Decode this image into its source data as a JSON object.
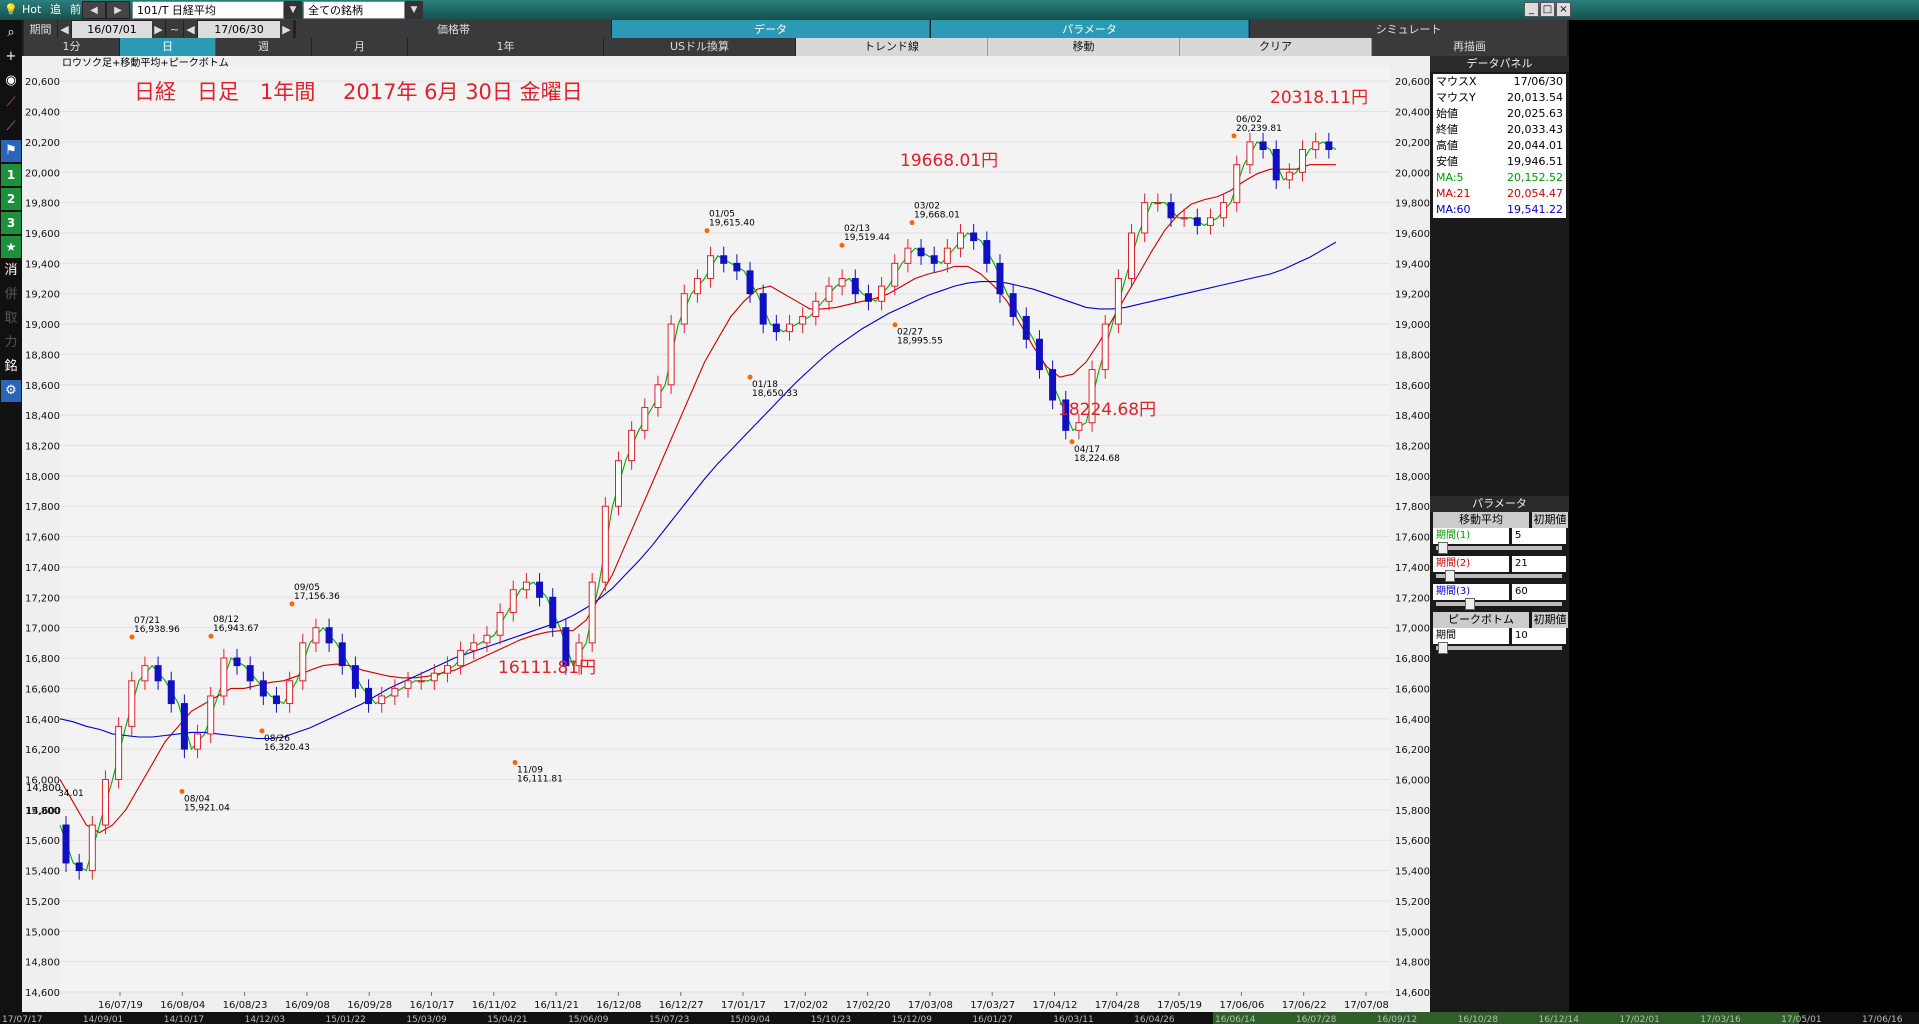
{
  "titlebar": {
    "hot": "Hot",
    "follow": "追",
    "prev": "前",
    "nav_left": "◀",
    "nav_right": "▶",
    "symbol": "101/T 日経平均",
    "filter": "全ての銘柄",
    "win_min": "_",
    "win_max": "□",
    "win_close": "×"
  },
  "toolbar": {
    "period_label": "期間",
    "date_from": "16/07/01",
    "tilde": "~",
    "date_to": "17/06/30",
    "price_band": "価格帯",
    "data_tab": "データ",
    "parameter_tab": "パラメータ",
    "simulate_tab": "シミュレート",
    "intervals": [
      "1分",
      "日",
      "週",
      "月"
    ],
    "one_year": "1年",
    "usd": "USドル換算",
    "trendline": "トレンド線",
    "move": "移動",
    "clear": "クリア",
    "redraw": "再描画"
  },
  "left_tools": {
    "search": "⌕",
    "plus": "+",
    "camera": "◉",
    "chart1": "⟋",
    "chart2": "⟋",
    "flag": "⚑",
    "n1": "1",
    "n2": "2",
    "n3": "3",
    "star": "★",
    "clear": "消",
    "t1": "併",
    "t2": "取",
    "t3": "力",
    "t4": "銘",
    "gear": "⚙"
  },
  "chart_data": {
    "type": "line",
    "legend_text": "ロウソク足+移動平均+ピークボトム",
    "annotation_title": "日経　日足　1年間　 2017年 6月 30日 金曜日",
    "ylim": [
      14600,
      20700
    ],
    "y_ticks": [
      "20,600",
      "20,400",
      "20,200",
      "20,000",
      "19,800",
      "19,600",
      "19,400",
      "19,200",
      "19,000",
      "18,800",
      "18,600",
      "18,400",
      "18,200",
      "18,000",
      "17,800",
      "17,600",
      "17,400",
      "17,200",
      "17,000",
      "16,800",
      "16,600",
      "16,400",
      "16,200",
      "16,000",
      "15,800",
      "15,600",
      "15,400",
      "15,200",
      "15,000",
      "14,800",
      "14,600"
    ],
    "x_ticks": [
      "16/07/19",
      "16/08/04",
      "16/08/23",
      "16/09/08",
      "16/09/28",
      "16/10/17",
      "16/11/02",
      "16/11/21",
      "16/12/08",
      "16/12/27",
      "17/01/17",
      "17/02/02",
      "17/02/20",
      "17/03/08",
      "17/03/27",
      "17/04/12",
      "17/04/28",
      "17/05/19",
      "17/06/06",
      "17/06/22",
      "17/07/08"
    ],
    "bottom_ticks": [
      "17/07/17",
      "14/09/01",
      "14/10/17",
      "14/12/03",
      "15/01/22",
      "15/03/09",
      "15/04/21",
      "15/06/09",
      "15/07/23",
      "15/09/04",
      "15/10/23",
      "15/12/09",
      "16/01/27",
      "16/03/11",
      "16/04/26",
      "16/06/14",
      "16/07/28",
      "16/09/12",
      "16/10/28",
      "16/12/14",
      "17/02/01",
      "17/03/16",
      "17/05/01",
      "17/06/16"
    ],
    "low_labels": [
      "14,800",
      "14,600"
    ],
    "cut_label": "34.01",
    "peak_bottom": [
      {
        "date": "07/21",
        "value": "16,938.96",
        "num": 16938.96
      },
      {
        "date": "08/04",
        "value": "15,921.04",
        "num": 15921.04
      },
      {
        "date": "08/12",
        "value": "16,943.67",
        "num": 16943.67
      },
      {
        "date": "08/26",
        "value": "16,320.43",
        "num": 16320.43
      },
      {
        "date": "09/05",
        "value": "17,156.36",
        "num": 17156.36
      },
      {
        "date": "11/09",
        "value": "16,111.81",
        "num": 16111.81
      },
      {
        "date": "01/05",
        "value": "19,615.40",
        "num": 19615.4
      },
      {
        "date": "01/18",
        "value": "18,650.33",
        "num": 18650.33
      },
      {
        "date": "02/13",
        "value": "19,519.44",
        "num": 19519.44
      },
      {
        "date": "02/27",
        "value": "18,995.55",
        "num": 18995.55
      },
      {
        "date": "03/02",
        "value": "19,668.01",
        "num": 19668.01
      },
      {
        "date": "04/17",
        "value": "18,224.68",
        "num": 18224.68
      },
      {
        "date": "06/02",
        "value": "20,239.81",
        "num": 20239.81
      }
    ],
    "red_annotations": [
      "16111.81円",
      "19668.01円",
      "18224.68円",
      "20318.11円"
    ],
    "series": [
      {
        "name": "MA:5",
        "color": "#00aa00",
        "values": [
          15700,
          15450,
          15400,
          15700,
          16000,
          16350,
          16650,
          16750,
          16650,
          16500,
          16200,
          16300,
          16550,
          16800,
          16750,
          16650,
          16550,
          16500,
          16650,
          16900,
          17000,
          16900,
          16750,
          16600,
          16500,
          16550,
          16600,
          16650,
          16650,
          16700,
          16750,
          16850,
          16900,
          16950,
          17100,
          17250,
          17300,
          17200,
          17000,
          16750,
          16900,
          17300,
          17800,
          18100,
          18300,
          18450,
          18600,
          19000,
          19200,
          19300,
          19450,
          19400,
          19350,
          19200,
          19000,
          18950,
          19000,
          19050,
          19150,
          19250,
          19300,
          19200,
          19150,
          19250,
          19400,
          19500,
          19450,
          19400,
          19500,
          19600,
          19550,
          19400,
          19200,
          19050,
          18900,
          18700,
          18500,
          18300,
          18350,
          18700,
          19000,
          19300,
          19600,
          19800,
          19800,
          19700,
          19700,
          19650,
          19700,
          19800,
          20050,
          20200,
          20150,
          19950,
          20000,
          20150,
          20200,
          20150
        ]
      },
      {
        "name": "MA:21",
        "color": "#cc0000",
        "values": [
          16000,
          15850,
          15700,
          15650,
          15700,
          15800,
          15950,
          16100,
          16250,
          16350,
          16450,
          16500,
          16550,
          16600,
          16600,
          16620,
          16640,
          16650,
          16680,
          16720,
          16750,
          16760,
          16750,
          16720,
          16700,
          16680,
          16670,
          16670,
          16680,
          16700,
          16720,
          16760,
          16800,
          16840,
          16880,
          16920,
          16950,
          16970,
          16980,
          16980,
          17050,
          17200,
          17350,
          17550,
          17750,
          17950,
          18150,
          18350,
          18550,
          18750,
          18900,
          19050,
          19150,
          19230,
          19250,
          19200,
          19150,
          19100,
          19100,
          19110,
          19130,
          19150,
          19170,
          19200,
          19250,
          19300,
          19330,
          19350,
          19380,
          19380,
          19330,
          19250,
          19150,
          19000,
          18850,
          18720,
          18650,
          18670,
          18750,
          18880,
          19030,
          19180,
          19330,
          19480,
          19620,
          19720,
          19790,
          19820,
          19840,
          19880,
          19940,
          19990,
          20020,
          20020,
          20020,
          20050,
          20050,
          20050
        ]
      },
      {
        "name": "MA:60",
        "color": "#0000cc",
        "values": [
          16400,
          16380,
          16350,
          16330,
          16300,
          16290,
          16280,
          16280,
          16290,
          16300,
          16310,
          16310,
          16300,
          16290,
          16280,
          16270,
          16270,
          16280,
          16310,
          16340,
          16380,
          16420,
          16460,
          16500,
          16550,
          16600,
          16640,
          16680,
          16720,
          16760,
          16800,
          16830,
          16860,
          16890,
          16920,
          16950,
          16980,
          17010,
          17040,
          17080,
          17130,
          17190,
          17260,
          17350,
          17440,
          17540,
          17650,
          17760,
          17870,
          17980,
          18080,
          18170,
          18260,
          18350,
          18440,
          18530,
          18620,
          18700,
          18780,
          18850,
          18910,
          18970,
          19020,
          19070,
          19110,
          19150,
          19190,
          19220,
          19250,
          19270,
          19280,
          19280,
          19270,
          19250,
          19230,
          19200,
          19170,
          19140,
          19110,
          19100,
          19100,
          19110,
          19130,
          19150,
          19170,
          19190,
          19210,
          19230,
          19250,
          19270,
          19290,
          19310,
          19330,
          19360,
          19400,
          19440,
          19490,
          19540
        ]
      }
    ]
  },
  "panel": {
    "data_title": "データパネル",
    "rows": [
      {
        "label": "マウスX",
        "value": "17/06/30",
        "color": "#000000"
      },
      {
        "label": "マウスY",
        "value": "20,013.54",
        "color": "#000000"
      },
      {
        "label": "始値",
        "value": "20,025.63",
        "color": "#000000"
      },
      {
        "label": "終値",
        "value": "20,033.43",
        "color": "#000000"
      },
      {
        "label": "高値",
        "value": "20,044.01",
        "color": "#000000"
      },
      {
        "label": "安値",
        "value": "19,946.51",
        "color": "#000000"
      },
      {
        "label": "MA:5",
        "value": "20,152.52",
        "color": "#009900"
      },
      {
        "label": "MA:21",
        "value": "20,054.47",
        "color": "#cc0000"
      },
      {
        "label": "MA:60",
        "value": "19,541.22",
        "color": "#0000cc"
      }
    ],
    "param_title": "パラメータ",
    "ma_title": "移動平均",
    "reset": "初期値",
    "p1_label": "期間(1)",
    "p1_value": "5",
    "p1_level": 0.02,
    "p2_label": "期間(2)",
    "p2_value": "21",
    "p2_level": 0.08,
    "p3_label": "期間(3)",
    "p3_value": "60",
    "p3_level": 0.25,
    "pb_title": "ピークボトム",
    "pb_label": "期間",
    "pb_value": "10",
    "pb_level": 0.02
  }
}
